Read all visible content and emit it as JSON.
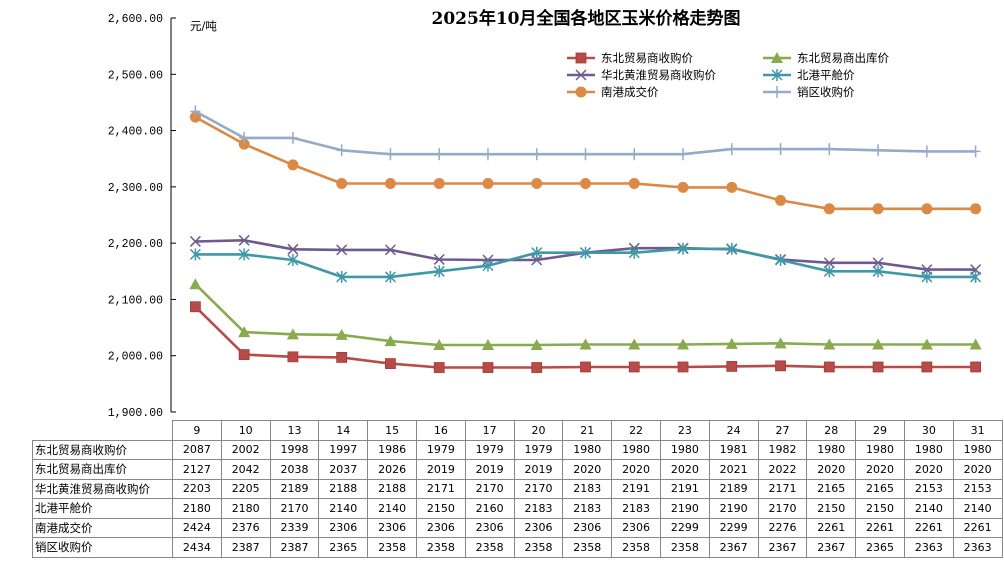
{
  "chart_data": {
    "type": "line",
    "title": "2025年10月全国各地区玉米价格走势图",
    "ylabel": "元/吨",
    "xlabel": "",
    "ylim": [
      1900,
      2600
    ],
    "yticks": [
      "2,600.00",
      "2,500.00",
      "2,400.00",
      "2,300.00",
      "2,200.00",
      "2,100.00",
      "2,000.00",
      "1,900.00"
    ],
    "ytick_values": [
      2600,
      2500,
      2400,
      2300,
      2200,
      2100,
      2000,
      1900
    ],
    "grid": false,
    "legend_position": "top-right",
    "categories": [
      "9",
      "10",
      "13",
      "14",
      "15",
      "16",
      "17",
      "20",
      "21",
      "22",
      "23",
      "24",
      "27",
      "28",
      "29",
      "30",
      "31"
    ],
    "series": [
      {
        "name": "东北贸易商收购价",
        "color": "#B84A47",
        "marker": "square",
        "values": [
          2087,
          2002,
          1998,
          1997,
          1986,
          1979,
          1979,
          1979,
          1980,
          1980,
          1980,
          1981,
          1982,
          1980,
          1980,
          1980,
          1980
        ]
      },
      {
        "name": "东北贸易商出库价",
        "color": "#8AAA4E",
        "marker": "triangle",
        "values": [
          2127,
          2042,
          2038,
          2037,
          2026,
          2019,
          2019,
          2019,
          2020,
          2020,
          2020,
          2021,
          2022,
          2020,
          2020,
          2020,
          2020
        ]
      },
      {
        "name": "华北黄淮贸易商收购价",
        "color": "#6E5A8E",
        "marker": "x",
        "values": [
          2203,
          2205,
          2189,
          2188,
          2188,
          2171,
          2170,
          2170,
          2183,
          2191,
          2191,
          2189,
          2171,
          2165,
          2165,
          2153,
          2153
        ]
      },
      {
        "name": "北港平舱价",
        "color": "#3F98A8",
        "marker": "star",
        "values": [
          2180,
          2180,
          2170,
          2140,
          2140,
          2150,
          2160,
          2183,
          2183,
          2183,
          2190,
          2190,
          2170,
          2150,
          2150,
          2140,
          2140
        ]
      },
      {
        "name": "南港成交价",
        "color": "#DB8A45",
        "marker": "circle",
        "values": [
          2424,
          2376,
          2339,
          2306,
          2306,
          2306,
          2306,
          2306,
          2306,
          2306,
          2299,
          2299,
          2276,
          2261,
          2261,
          2261,
          2261
        ]
      },
      {
        "name": "销区收购价",
        "color": "#95A9C8",
        "marker": "plus",
        "values": [
          2434,
          2387,
          2387,
          2365,
          2358,
          2358,
          2358,
          2358,
          2358,
          2358,
          2358,
          2367,
          2367,
          2367,
          2365,
          2363,
          2363
        ]
      }
    ]
  }
}
